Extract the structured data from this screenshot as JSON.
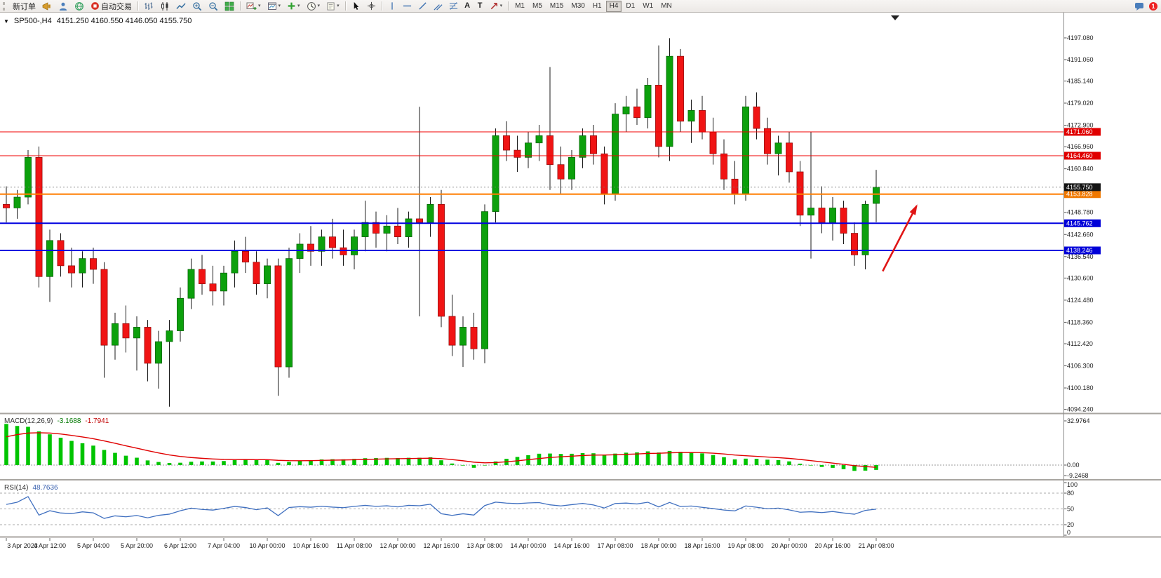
{
  "toolbar": {
    "new_order": "新订单",
    "auto_trading": "自动交易",
    "text_tool": "A",
    "label_tool": "T",
    "timeframes": [
      "M1",
      "M5",
      "M15",
      "M30",
      "H1",
      "H4",
      "D1",
      "W1",
      "MN"
    ],
    "active_timeframe": "H4",
    "notification_badge": "1"
  },
  "chart_header": {
    "symbol_period": "SP500-,H4",
    "ohlc": "4151.250 4160.550 4146.050 4155.750"
  },
  "price_axis": {
    "grid_labels": [
      "4197.080",
      "4191.060",
      "4185.140",
      "4179.020",
      "4172.900",
      "4166.960",
      "4160.840",
      "4148.780",
      "4142.660",
      "4136.540",
      "4130.600",
      "4124.480",
      "4118.360",
      "4112.420",
      "4106.300",
      "4100.180",
      "4094.240"
    ],
    "badges": [
      {
        "name": "resistance-1",
        "text": "4171.060",
        "price": 4171.06,
        "bg": "#E00000"
      },
      {
        "name": "resistance-2",
        "text": "4164.460",
        "price": 4164.46,
        "bg": "#E00000"
      },
      {
        "name": "pivot-orange",
        "text": "4153.828",
        "price": 4153.828,
        "bg": "#F07800"
      },
      {
        "name": "current-price",
        "text": "4155.750",
        "price": 4155.75,
        "bg": "#151515"
      },
      {
        "name": "support-1",
        "text": "4145.762",
        "price": 4145.762,
        "bg": "#0000D8"
      },
      {
        "name": "support-2",
        "text": "4138.246",
        "price": 4138.246,
        "bg": "#0000D8"
      }
    ]
  },
  "chart_data": {
    "type": "candlestick",
    "symbol": "SP500-",
    "period": "H4",
    "price_range": [
      4094.24,
      4197.08
    ],
    "current_price": 4155.75,
    "horizontal_lines": [
      {
        "price": 4171.06,
        "color": "#F00000",
        "width": 1
      },
      {
        "price": 4164.46,
        "color": "#F00000",
        "width": 1
      },
      {
        "price": 4153.828,
        "color": "#FF7E00",
        "width": 2
      },
      {
        "price": 4145.762,
        "color": "#0000E0",
        "width": 2
      },
      {
        "price": 4138.246,
        "color": "#0000E0",
        "width": 2
      }
    ],
    "candles_ohlc": [
      [
        4151,
        4156,
        4146,
        4150
      ],
      [
        4150,
        4155,
        4147,
        4153
      ],
      [
        4153,
        4166,
        4151,
        4164
      ],
      [
        4164,
        4167,
        4128,
        4131
      ],
      [
        4131,
        4144,
        4124,
        4141
      ],
      [
        4141,
        4143,
        4131,
        4134
      ],
      [
        4134,
        4139,
        4128,
        4132
      ],
      [
        4132,
        4138,
        4128,
        4136
      ],
      [
        4136,
        4139,
        4129,
        4133
      ],
      [
        4133,
        4135,
        4103,
        4112
      ],
      [
        4112,
        4121,
        4108,
        4118
      ],
      [
        4118,
        4123,
        4110,
        4114
      ],
      [
        4114,
        4120,
        4105,
        4117
      ],
      [
        4117,
        4119,
        4102,
        4107
      ],
      [
        4107,
        4116,
        4100,
        4113
      ],
      [
        4113,
        4119,
        4095,
        4116
      ],
      [
        4116,
        4128,
        4113,
        4125
      ],
      [
        4125,
        4136,
        4122,
        4133
      ],
      [
        4133,
        4137,
        4126,
        4129
      ],
      [
        4129,
        4134,
        4123,
        4127
      ],
      [
        4127,
        4134,
        4123,
        4132
      ],
      [
        4132,
        4141,
        4128,
        4138
      ],
      [
        4138,
        4142,
        4132,
        4135
      ],
      [
        4135,
        4138,
        4126,
        4129
      ],
      [
        4129,
        4136,
        4125,
        4134
      ],
      [
        4134,
        4136,
        4098,
        4106
      ],
      [
        4106,
        4139,
        4103,
        4136
      ],
      [
        4136,
        4143,
        4132,
        4140
      ],
      [
        4140,
        4145,
        4134,
        4138
      ],
      [
        4138,
        4144,
        4134,
        4142
      ],
      [
        4142,
        4147,
        4136,
        4139
      ],
      [
        4139,
        4144,
        4134,
        4137
      ],
      [
        4137,
        4144,
        4133,
        4142
      ],
      [
        4142,
        4152,
        4138,
        4146
      ],
      [
        4146,
        4149,
        4139,
        4143
      ],
      [
        4143,
        4148,
        4138,
        4145
      ],
      [
        4145,
        4150,
        4140,
        4142
      ],
      [
        4142,
        4149,
        4139,
        4147
      ],
      [
        4147,
        4178,
        4120,
        4146
      ],
      [
        4146,
        4153,
        4142,
        4151
      ],
      [
        4151,
        4155,
        4117,
        4120
      ],
      [
        4120,
        4126,
        4109,
        4112
      ],
      [
        4112,
        4120,
        4106,
        4117
      ],
      [
        4117,
        4121,
        4108,
        4111
      ],
      [
        4111,
        4151,
        4107,
        4149
      ],
      [
        4149,
        4172,
        4146,
        4170
      ],
      [
        4170,
        4174,
        4163,
        4166
      ],
      [
        4166,
        4170,
        4160,
        4164
      ],
      [
        4164,
        4171,
        4161,
        4168
      ],
      [
        4168,
        4173,
        4163,
        4170
      ],
      [
        4170,
        4189,
        4155,
        4162
      ],
      [
        4162,
        4167,
        4154,
        4158
      ],
      [
        4158,
        4166,
        4155,
        4164
      ],
      [
        4164,
        4172,
        4161,
        4170
      ],
      [
        4170,
        4173,
        4162,
        4165
      ],
      [
        4165,
        4167,
        4151,
        4154
      ],
      [
        4154,
        4179,
        4152,
        4176
      ],
      [
        4176,
        4181,
        4171,
        4178
      ],
      [
        4178,
        4183,
        4173,
        4175
      ],
      [
        4175,
        4186,
        4172,
        4184
      ],
      [
        4184,
        4195,
        4164,
        4167
      ],
      [
        4167,
        4197,
        4163,
        4192
      ],
      [
        4192,
        4194,
        4171,
        4174
      ],
      [
        4174,
        4180,
        4168,
        4177
      ],
      [
        4177,
        4181,
        4169,
        4171
      ],
      [
        4171,
        4175,
        4162,
        4165
      ],
      [
        4165,
        4169,
        4155,
        4158
      ],
      [
        4158,
        4163,
        4151,
        4154
      ],
      [
        4154,
        4181,
        4152,
        4178
      ],
      [
        4178,
        4182,
        4169,
        4172
      ],
      [
        4172,
        4175,
        4162,
        4165
      ],
      [
        4165,
        4170,
        4159,
        4168
      ],
      [
        4168,
        4171,
        4157,
        4160
      ],
      [
        4160,
        4163,
        4145,
        4148
      ],
      [
        4148,
        4171,
        4136,
        4150
      ],
      [
        4150,
        4156,
        4143,
        4146
      ],
      [
        4146,
        4153,
        4141,
        4150
      ],
      [
        4150,
        4152,
        4140,
        4143
      ],
      [
        4143,
        4146,
        4134,
        4137
      ],
      [
        4137,
        4152,
        4133,
        4151
      ],
      [
        4151.25,
        4160.55,
        4146.05,
        4155.75
      ]
    ],
    "time_labels": [
      "3 Apr 2023",
      "4 Apr 12:00",
      "5 Apr 04:00",
      "5 Apr 20:00",
      "6 Apr 12:00",
      "7 Apr 04:00",
      "10 Apr 00:00",
      "10 Apr 16:00",
      "11 Apr 08:00",
      "12 Apr 00:00",
      "12 Apr 16:00",
      "13 Apr 08:00",
      "14 Apr 00:00",
      "14 Apr 16:00",
      "17 Apr 08:00",
      "18 Apr 00:00",
      "18 Apr 16:00",
      "19 Apr 08:00",
      "20 Apr 00:00",
      "20 Apr 16:00",
      "21 Apr 08:00"
    ],
    "indicators": {
      "macd": {
        "label": "MACD(12,26,9)",
        "main_value": "-3.1688",
        "signal_value": "-1.7941",
        "axis_max": "32.9764",
        "axis_zero": "0.00",
        "axis_min": "-9.2468",
        "histogram_color": "#00C400",
        "signal_color": "#E00000"
      },
      "rsi": {
        "label": "RSI(14)",
        "value": "48.7636",
        "axis_labels": [
          "100",
          "80",
          "50",
          "20",
          "0"
        ],
        "levels": [
          80,
          50,
          20
        ],
        "line_color": "#4070C0"
      }
    },
    "annotations": [
      {
        "type": "trend-arrow",
        "color": "#E01515",
        "from": {
          "index": 80.6,
          "price": 4132.5
        },
        "to": {
          "index": 83.7,
          "price": 4150.5
        }
      }
    ]
  },
  "colors": {
    "bull": "#0CA00C",
    "bear": "#F01414",
    "wick": "#1a1a1a",
    "background": "#FFFFFF",
    "axis_text": "#1c1c1c",
    "separator": "#a8a5a0"
  }
}
